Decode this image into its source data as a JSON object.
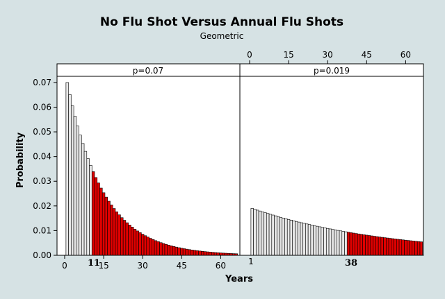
{
  "chart_data": {
    "type": "bar",
    "title": "No Flu Shot Versus Annual Flu Shots",
    "subtitle": "Geometric",
    "xlabel": "Years",
    "ylabel": "Probability",
    "colors": {
      "background": "#d6e2e4",
      "plot_bg": "#ffffff",
      "bar_default": "#e6e6e6",
      "bar_shaded": "#e00000",
      "bar_outline": "#000000"
    },
    "panels": [
      {
        "strip_label": "p=0.07",
        "p": 0.07,
        "x_start": 1,
        "x_end": 66,
        "shade_from": 11,
        "marked_label": "11",
        "x_ticks": [
          "0",
          "15",
          "30",
          "45",
          "60"
        ],
        "tick_axis": "bottom",
        "ylim": [
          0,
          0.07
        ],
        "y_ticks": [
          "0.00",
          "0.01",
          "0.02",
          "0.03",
          "0.04",
          "0.05",
          "0.06",
          "0.07"
        ]
      },
      {
        "strip_label": "p=0.019",
        "p": 0.019,
        "x_start": 1,
        "x_end": 66,
        "shade_from": 38,
        "marked_label": "38",
        "bottom_label": "1",
        "x_ticks": [
          "0",
          "15",
          "30",
          "45",
          "60"
        ],
        "tick_axis": "top",
        "ylim": [
          0,
          0.07
        ]
      }
    ]
  }
}
